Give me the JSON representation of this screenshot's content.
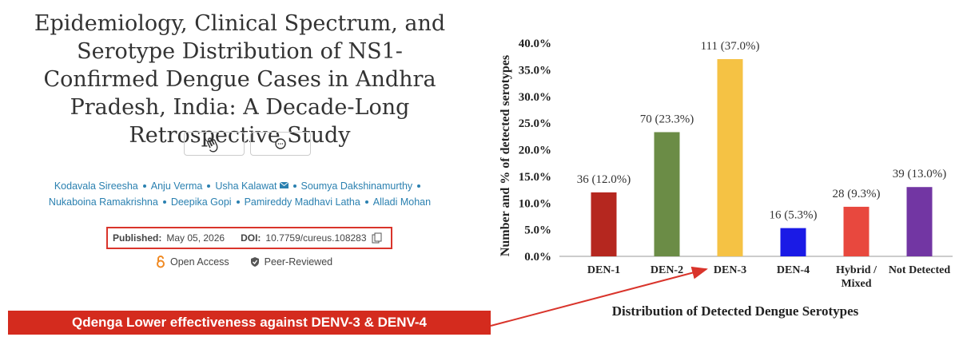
{
  "article": {
    "title": "Epidemiology, Clinical Spectrum, and Serotype Distribution of NS1-Confirmed Dengue Cases in Andhra Pradesh, India: A Decade-Long Retrospective Study",
    "authors": [
      "Kodavala Sireesha",
      "Anju Verma",
      "Usha Kalawat",
      "Soumya Dakshinamurthy",
      "Nukaboina Ramakrishna",
      "Deepika Gopi",
      "Pamireddy Madhavi Latha",
      "Alladi Mohan"
    ],
    "published_label": "Published:",
    "published": "May 05, 2026",
    "doi_label": "DOI:",
    "doi": "10.7759/cureus.108283",
    "badges": [
      "Open Access",
      "Peer-Reviewed"
    ]
  },
  "chart_data": {
    "type": "bar",
    "ylabel": "Number and % of detected serotypes",
    "xlabel": "Distribution  of Detected Dengue Serotypes",
    "categories": [
      "DEN-1",
      "DEN-2",
      "DEN-3",
      "DEN-4",
      "Hybrid / Mixed",
      "Not Detected"
    ],
    "values": [
      12.0,
      23.3,
      37.0,
      5.3,
      9.3,
      13.0
    ],
    "value_labels": [
      "36 (12.0%)",
      "70 (23.3%)",
      "111 (37.0%)",
      "16 (5.3%)",
      "28 (9.3%)",
      "39 (13.0%)"
    ],
    "colors": [
      "#b5271f",
      "#6b8c46",
      "#f5c244",
      "#1a1ae6",
      "#e8483e",
      "#7236a3"
    ],
    "ylim": [
      0,
      40
    ],
    "yticks": [
      {
        "value": 0,
        "label": "0.0%"
      },
      {
        "value": 5,
        "label": "5.0%"
      },
      {
        "value": 10,
        "label": "10.0%"
      },
      {
        "value": 15,
        "label": "15.0%"
      },
      {
        "value": 20,
        "label": "20.0%"
      },
      {
        "value": 25,
        "label": "25.0%"
      },
      {
        "value": 30,
        "label": "30.0%"
      },
      {
        "value": 35,
        "label": "35.0%"
      },
      {
        "value": 40,
        "label": "40.0%"
      }
    ],
    "grid": false
  },
  "banner": "Qdenga Lower effectiveness against DENV-3 & DENV-4"
}
